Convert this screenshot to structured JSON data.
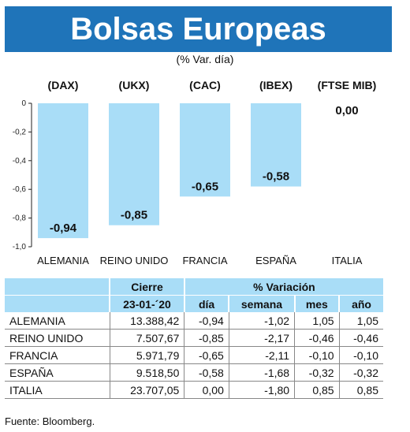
{
  "title": "Bolsas Europeas",
  "subtitle": "(% Var. día)",
  "chart_data": {
    "type": "bar",
    "index_labels": [
      "(DAX)",
      "(UKX)",
      "(CAC)",
      "(IBEX)",
      "(FTSE MIB)"
    ],
    "categories": [
      "ALEMANIA",
      "REINO UNIDO",
      "FRANCIA",
      "ESPAÑA",
      "ITALIA"
    ],
    "values": [
      -0.94,
      -0.85,
      -0.65,
      -0.58,
      0.0
    ],
    "value_labels": [
      "-0,94",
      "-0,85",
      "-0,65",
      "-0,58",
      "0,00"
    ],
    "yticks": [
      0,
      -0.2,
      -0.4,
      -0.6,
      -0.8,
      -1.0
    ],
    "ytick_labels": [
      "0",
      "-0,2",
      "-0,4",
      "-0,6",
      "-0,8",
      "-1,0"
    ],
    "ylim": [
      -1.0,
      0
    ],
    "bar_color": "#a9ddf7",
    "grid": false
  },
  "table": {
    "header_top": [
      "Cierre",
      "% Variación"
    ],
    "header_bottom": [
      "23-01-´20",
      "día",
      "semana",
      "mes",
      "año"
    ],
    "rows": [
      [
        "ALEMANIA",
        "13.388,42",
        "-0,94",
        "-1,02",
        "1,05",
        "1,05"
      ],
      [
        "REINO UNIDO",
        "7.507,67",
        "-0,85",
        "-2,17",
        "-0,46",
        "-0,46"
      ],
      [
        "FRANCIA",
        "5.971,79",
        "-0,65",
        "-2,11",
        "-0,10",
        "-0,10"
      ],
      [
        "ESPAÑA",
        "9.518,50",
        "-0,58",
        "-1,68",
        "-0,32",
        "-0,32"
      ],
      [
        "ITALIA",
        "23.707,05",
        "0,00",
        "-1,80",
        "0,85",
        "0,85"
      ]
    ]
  },
  "source": "Fuente: Bloomberg.",
  "colors": {
    "banner": "#1f74b9",
    "accent_light": "#a9ddf7"
  }
}
